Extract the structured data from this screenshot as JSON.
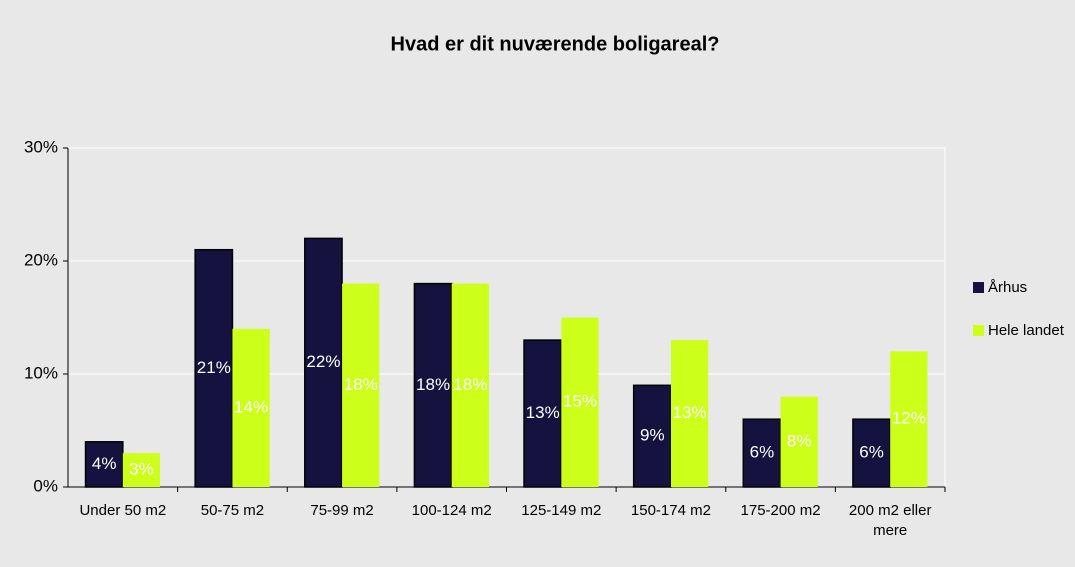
{
  "chart_data": {
    "type": "bar",
    "title": "Hvad er dit nuværende boligareal?",
    "categories": [
      "Under 50 m2",
      "50-75 m2",
      "75-99 m2",
      "100-124 m2",
      "125-149 m2",
      "150-174 m2",
      "175-200 m2",
      "200 m2 eller mere"
    ],
    "series": [
      {
        "name": "Århus",
        "color": "#15123f",
        "values": [
          4,
          21,
          22,
          18,
          13,
          9,
          6,
          6
        ],
        "value_labels": [
          "4%",
          "21%",
          "22%",
          "18%",
          "13%",
          "9%",
          "6%",
          "6%"
        ]
      },
      {
        "name": "Hele landet",
        "color": "#ccff1a",
        "values": [
          3,
          14,
          18,
          18,
          15,
          13,
          8,
          12
        ],
        "value_labels": [
          "3%",
          "14%",
          "18%",
          "18%",
          "15%",
          "13%",
          "8%",
          "12%"
        ]
      }
    ],
    "ylim": [
      0,
      30
    ],
    "yticks": [
      {
        "value": 0,
        "label": "0%"
      },
      {
        "value": 10,
        "label": "10%"
      },
      {
        "value": 20,
        "label": "20%"
      },
      {
        "value": 30,
        "label": "30%"
      }
    ],
    "grid": true,
    "legend": "right"
  }
}
